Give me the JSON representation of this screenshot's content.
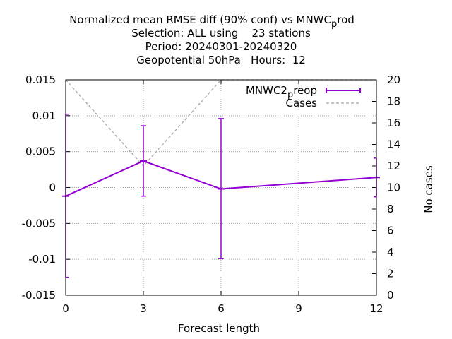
{
  "chart_data": {
    "type": "line",
    "title_lines": [
      "Normalized mean RMSE diff (90% conf) vs MNWC",
      "Selection: ALL using    23 stations",
      "Period: 20240301-20240320",
      "Geopotential 50hPa   Hours:  12"
    ],
    "title_sub_base": "p",
    "title_sub_tail": "rod",
    "xlabel": "Forecast length",
    "ylabel": "",
    "y2label": "No cases",
    "x_ticks": [
      "0",
      "3",
      "6",
      "9",
      "12"
    ],
    "y_ticks": [
      "0.015",
      "0.01",
      "0.005",
      "0",
      "-0.005",
      "-0.01",
      "-0.015"
    ],
    "y2_ticks": [
      "20",
      "18",
      "16",
      "14",
      "12",
      "10",
      "8",
      "6",
      "4",
      "2",
      "0"
    ],
    "xlim": [
      0,
      12
    ],
    "ylim": [
      -0.015,
      0.015
    ],
    "y2lim": [
      0,
      20
    ],
    "grid": true,
    "legend_position": "top-right",
    "series": [
      {
        "name": "MNWC2",
        "name_sub": "p",
        "name_tail": "reop",
        "color": "#9400d3",
        "axis": "y",
        "style": "errorbars",
        "x": [
          0,
          3,
          6,
          12
        ],
        "y": [
          -0.0012,
          0.0037,
          -0.0002,
          0.0014
        ],
        "low": [
          -0.0125,
          -0.0012,
          -0.0099,
          -0.0013
        ],
        "high": [
          0.0102,
          0.0086,
          0.0096,
          0.0041
        ]
      },
      {
        "name": "Cases",
        "color": "#a0a0a0",
        "axis": "y2",
        "style": "dashed",
        "x": [
          0,
          3,
          6,
          12
        ],
        "y": [
          20,
          12,
          20,
          20
        ]
      }
    ]
  }
}
